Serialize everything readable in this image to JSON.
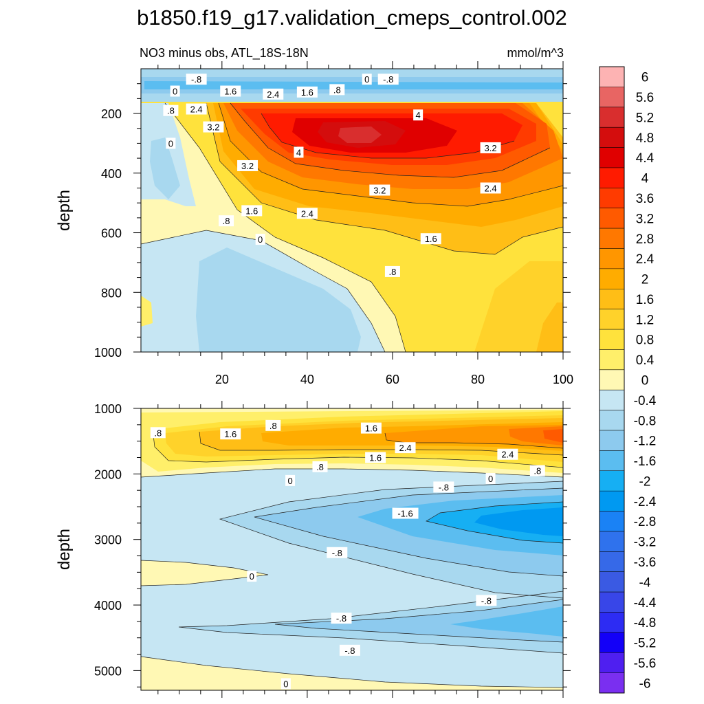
{
  "title": "b1850.f19_g17.validation_cmeps_control.002",
  "chart_data": {
    "type": "contour",
    "variable_label": "NO3 minus obs, ATL_18S-18N",
    "units": "mmol/m^3",
    "xlim": [
      1,
      100
    ],
    "colorbar": {
      "labels": [
        "6",
        "5.6",
        "5.2",
        "4.8",
        "4.4",
        "4",
        "3.6",
        "3.2",
        "2.8",
        "2.4",
        "2",
        "1.6",
        "1.2",
        "0.8",
        "0.4",
        "0",
        "-0.4",
        "-0.8",
        "-1.2",
        "-1.6",
        "-2",
        "-2.4",
        "-2.8",
        "-3.2",
        "-3.6",
        "-4",
        "-4.4",
        "-4.8",
        "-5.2",
        "-5.6",
        "-6"
      ],
      "colors": [
        "#fdb3b3",
        "#e86563",
        "#d92e2e",
        "#d40d0d",
        "#e00000",
        "#ff1b00",
        "#ff3b00",
        "#ff5a00",
        "#ff7800",
        "#ff9600",
        "#ffac00",
        "#ffbe16",
        "#ffd22a",
        "#ffe23c",
        "#ffef6a",
        "#fff8b4",
        "#c6e6f3",
        "#a8d8ef",
        "#8dcaee",
        "#5bbdf0",
        "#16aff3",
        "#0099f1",
        "#1a82f5",
        "#2f72ed",
        "#3669e8",
        "#3a5ae3",
        "#3846e8",
        "#2d2cf3",
        "#1300f8",
        "#4f1ff0",
        "#7a2ff0"
      ]
    },
    "panels": [
      {
        "name": "upper",
        "ylabel": "depth",
        "ylim": [
          1000,
          50
        ],
        "x_ticks": [
          "20",
          "40",
          "60",
          "80",
          "100"
        ],
        "y_ticks": [
          "200",
          "400",
          "600",
          "800",
          "1000"
        ],
        "contour_labels": [
          {
            "text": ".8",
            "x": 8,
            "y": 190
          },
          {
            "text": "0",
            "x": 8,
            "y": 300
          },
          {
            "text": "2.4",
            "x": 14,
            "y": 185
          },
          {
            "text": "3.2",
            "x": 18,
            "y": 245
          },
          {
            "text": "3.2",
            "x": 26,
            "y": 375
          },
          {
            "text": "4",
            "x": 38,
            "y": 330
          },
          {
            "text": "1.6",
            "x": 27,
            "y": 526
          },
          {
            "text": ".8",
            "x": 21,
            "y": 560
          },
          {
            "text": "2.4",
            "x": 40,
            "y": 535
          },
          {
            "text": "3.2",
            "x": 57,
            "y": 457
          },
          {
            "text": "4",
            "x": 66,
            "y": 205
          },
          {
            "text": "3.2",
            "x": 83,
            "y": 315
          },
          {
            "text": "2.4",
            "x": 83,
            "y": 450
          },
          {
            "text": "1.6",
            "x": 69,
            "y": 620
          },
          {
            "text": "0",
            "x": 29,
            "y": 622
          },
          {
            "text": ".8",
            "x": 60,
            "y": 730
          },
          {
            "text": "-.8",
            "x": 14,
            "y": 85
          },
          {
            "text": "0",
            "x": 9,
            "y": 125
          },
          {
            "text": "1.6",
            "x": 22,
            "y": 125
          },
          {
            "text": "2.4",
            "x": 32,
            "y": 135
          },
          {
            "text": "1.6",
            "x": 40,
            "y": 128
          },
          {
            "text": ".8",
            "x": 47,
            "y": 120
          },
          {
            "text": "0",
            "x": 54,
            "y": 85
          },
          {
            "text": "-.8",
            "x": 59,
            "y": 85
          }
        ]
      },
      {
        "name": "lower",
        "ylabel": "depth",
        "ylim": [
          5300,
          1000
        ],
        "y_ticks": [
          "1000",
          "2000",
          "3000",
          "4000",
          "5000"
        ],
        "contour_labels": [
          {
            "text": ".8",
            "x": 5,
            "y": 1370
          },
          {
            "text": "1.6",
            "x": 22,
            "y": 1390
          },
          {
            "text": ".8",
            "x": 32,
            "y": 1260
          },
          {
            "text": "1.6",
            "x": 55,
            "y": 1300
          },
          {
            "text": "2.4",
            "x": 63,
            "y": 1600
          },
          {
            "text": "1.6",
            "x": 56,
            "y": 1750
          },
          {
            "text": "2.4",
            "x": 87,
            "y": 1700
          },
          {
            "text": ".8",
            "x": 43,
            "y": 1890
          },
          {
            "text": "0",
            "x": 36,
            "y": 2100
          },
          {
            "text": "0",
            "x": 83,
            "y": 2070
          },
          {
            "text": ".8",
            "x": 94,
            "y": 1950
          },
          {
            "text": "-.8",
            "x": 72,
            "y": 2200
          },
          {
            "text": "-1.6",
            "x": 63,
            "y": 2600
          },
          {
            "text": "-.8",
            "x": 47,
            "y": 3200
          },
          {
            "text": "0",
            "x": 27,
            "y": 3560
          },
          {
            "text": "-.8",
            "x": 82,
            "y": 3930
          },
          {
            "text": "-.8",
            "x": 48,
            "y": 4200
          },
          {
            "text": "-.8",
            "x": 50,
            "y": 4690
          },
          {
            "text": "0",
            "x": 35,
            "y": 5200
          }
        ]
      }
    ]
  }
}
